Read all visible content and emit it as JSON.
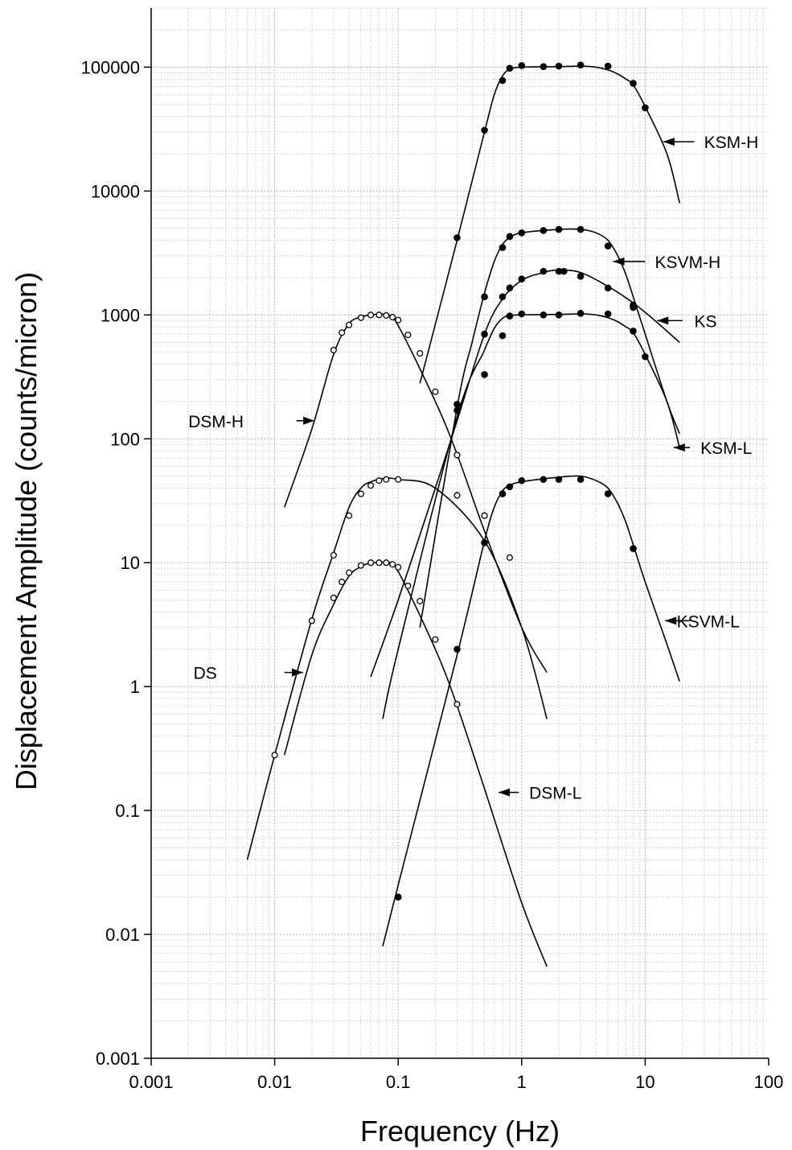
{
  "chart_data": {
    "type": "line",
    "title": "",
    "xlabel": "Frequency (Hz)",
    "ylabel": "Displacement Amplitude (counts/micron)",
    "xscale": "log",
    "yscale": "log",
    "xlim": [
      0.001,
      100
    ],
    "ylim": [
      0.001,
      300000
    ],
    "grid": "minor log gridlines on both axes",
    "x_ticks": [
      {
        "value": 0.001,
        "label": "0.001"
      },
      {
        "value": 0.01,
        "label": "0.01"
      },
      {
        "value": 0.1,
        "label": "0.1"
      },
      {
        "value": 1,
        "label": "1"
      },
      {
        "value": 10,
        "label": "10"
      },
      {
        "value": 100,
        "label": "100"
      }
    ],
    "y_ticks": [
      {
        "value": 0.001,
        "label": "0.001"
      },
      {
        "value": 0.01,
        "label": "0.01"
      },
      {
        "value": 0.1,
        "label": "0.1"
      },
      {
        "value": 1,
        "label": "1"
      },
      {
        "value": 10,
        "label": "10"
      },
      {
        "value": 100,
        "label": "100"
      },
      {
        "value": 1000,
        "label": "1000"
      },
      {
        "value": 10000,
        "label": "10000"
      },
      {
        "value": 100000,
        "label": "100000"
      }
    ],
    "series": [
      {
        "name": "KSM-H",
        "marker": "filled",
        "curve": [
          [
            0.15,
            280
          ],
          [
            0.3,
            4000
          ],
          [
            0.5,
            30000
          ],
          [
            0.6,
            60000
          ],
          [
            0.7,
            85000
          ],
          [
            0.8,
            96000
          ],
          [
            1,
            100000
          ],
          [
            2,
            101000
          ],
          [
            3,
            102000
          ],
          [
            4,
            100000
          ],
          [
            5,
            95000
          ],
          [
            6,
            88000
          ],
          [
            7,
            80000
          ],
          [
            8,
            72000
          ],
          [
            10,
            48000
          ],
          [
            15,
            20000
          ],
          [
            19,
            8000
          ]
        ],
        "points": [
          [
            0.3,
            4200
          ],
          [
            0.5,
            31000
          ],
          [
            0.7,
            78000
          ],
          [
            0.8,
            98000
          ],
          [
            1,
            103000
          ],
          [
            1.5,
            101000
          ],
          [
            2,
            102000
          ],
          [
            3,
            104000
          ],
          [
            5,
            102000
          ],
          [
            8,
            74000
          ],
          [
            10,
            47000
          ]
        ]
      },
      {
        "name": "KSVM-H",
        "marker": "filled",
        "curve": [
          [
            0.15,
            3
          ],
          [
            0.3,
            180
          ],
          [
            0.4,
            620
          ],
          [
            0.5,
            1500
          ],
          [
            0.6,
            2700
          ],
          [
            0.7,
            3700
          ],
          [
            0.8,
            4200
          ],
          [
            1,
            4600
          ],
          [
            2,
            4900
          ],
          [
            3,
            4900
          ],
          [
            4,
            4600
          ],
          [
            5,
            4000
          ],
          [
            6,
            3000
          ],
          [
            7,
            2100
          ],
          [
            8,
            1400
          ],
          [
            10,
            700
          ],
          [
            15,
            200
          ],
          [
            19,
            110
          ]
        ],
        "points": [
          [
            0.3,
            190
          ],
          [
            0.5,
            1400
          ],
          [
            0.7,
            3500
          ],
          [
            0.8,
            4300
          ],
          [
            1,
            4600
          ],
          [
            1.5,
            4800
          ],
          [
            2,
            4900
          ],
          [
            3,
            4900
          ],
          [
            5,
            3600
          ],
          [
            8,
            1200
          ]
        ]
      },
      {
        "name": "KS",
        "marker": "filled",
        "curve": [
          [
            0.06,
            1.2
          ],
          [
            0.1,
            5
          ],
          [
            0.2,
            40
          ],
          [
            0.3,
            140
          ],
          [
            0.5,
            700
          ],
          [
            0.7,
            1350
          ],
          [
            1,
            1900
          ],
          [
            1.5,
            2200
          ],
          [
            2,
            2300
          ],
          [
            3,
            2200
          ],
          [
            5,
            1700
          ],
          [
            8,
            1250
          ],
          [
            12,
            900
          ],
          [
            19,
            600
          ]
        ],
        "points": [
          [
            0.5,
            700
          ],
          [
            0.7,
            1400
          ],
          [
            0.8,
            1650
          ],
          [
            1,
            1950
          ],
          [
            1.5,
            2250
          ],
          [
            2,
            2250
          ],
          [
            2.2,
            2250
          ],
          [
            3,
            2050
          ],
          [
            5,
            1650
          ],
          [
            8,
            1150
          ]
        ]
      },
      {
        "name": "KSM-L",
        "marker": "filled",
        "curve": [
          [
            0.075,
            0.55
          ],
          [
            0.1,
            2
          ],
          [
            0.3,
            150
          ],
          [
            0.5,
            520
          ],
          [
            0.6,
            780
          ],
          [
            0.7,
            940
          ],
          [
            0.8,
            990
          ],
          [
            1,
            1000
          ],
          [
            2,
            1010
          ],
          [
            3,
            1020
          ],
          [
            4,
            1000
          ],
          [
            5,
            950
          ],
          [
            6,
            880
          ],
          [
            7,
            800
          ],
          [
            8,
            720
          ],
          [
            10,
            480
          ],
          [
            15,
            200
          ],
          [
            19,
            85
          ]
        ],
        "points": [
          [
            0.3,
            170
          ],
          [
            0.5,
            330
          ],
          [
            0.7,
            680
          ],
          [
            0.8,
            980
          ],
          [
            1,
            1020
          ],
          [
            1.5,
            1000
          ],
          [
            2,
            1000
          ],
          [
            3,
            1030
          ],
          [
            5,
            1020
          ],
          [
            8,
            740
          ],
          [
            10,
            460
          ]
        ]
      },
      {
        "name": "KSVM-L",
        "marker": "filled",
        "curve": [
          [
            0.075,
            0.008
          ],
          [
            0.1,
            0.025
          ],
          [
            0.3,
            1.8
          ],
          [
            0.5,
            15
          ],
          [
            0.6,
            28
          ],
          [
            0.7,
            38
          ],
          [
            0.8,
            42
          ],
          [
            1,
            45
          ],
          [
            2,
            49
          ],
          [
            3,
            50
          ],
          [
            4,
            46
          ],
          [
            5,
            40
          ],
          [
            6,
            30
          ],
          [
            7,
            21
          ],
          [
            8,
            14
          ],
          [
            10,
            7
          ],
          [
            15,
            2.2
          ],
          [
            19,
            1.1
          ]
        ],
        "points": [
          [
            0.1,
            0.02
          ],
          [
            0.3,
            2
          ],
          [
            0.5,
            14.5
          ],
          [
            0.7,
            36
          ],
          [
            0.8,
            41
          ],
          [
            1,
            46
          ],
          [
            1.5,
            47
          ],
          [
            2,
            47
          ],
          [
            3,
            47
          ],
          [
            5,
            36
          ],
          [
            8,
            13
          ]
        ]
      },
      {
        "name": "DSM-H",
        "marker": "open",
        "curve": [
          [
            0.012,
            28
          ],
          [
            0.02,
            120
          ],
          [
            0.03,
            480
          ],
          [
            0.04,
            850
          ],
          [
            0.05,
            960
          ],
          [
            0.06,
            1000
          ],
          [
            0.08,
            1000
          ],
          [
            0.1,
            820
          ],
          [
            0.2,
            200
          ],
          [
            0.3,
            75
          ],
          [
            0.5,
            18
          ],
          [
            1,
            3
          ],
          [
            1.6,
            1.3
          ]
        ],
        "points": [
          [
            0.03,
            520
          ],
          [
            0.035,
            720
          ],
          [
            0.04,
            830
          ],
          [
            0.05,
            950
          ],
          [
            0.06,
            1000
          ],
          [
            0.07,
            1000
          ],
          [
            0.08,
            990
          ],
          [
            0.09,
            960
          ],
          [
            0.1,
            910
          ],
          [
            0.12,
            690
          ],
          [
            0.15,
            490
          ],
          [
            0.2,
            240
          ],
          [
            0.3,
            74
          ],
          [
            0.5,
            24
          ],
          [
            0.8,
            11
          ]
        ]
      },
      {
        "name": "DS",
        "marker": "open",
        "curve": [
          [
            0.006,
            0.04
          ],
          [
            0.01,
            0.28
          ],
          [
            0.02,
            3.5
          ],
          [
            0.03,
            12
          ],
          [
            0.04,
            28
          ],
          [
            0.05,
            40
          ],
          [
            0.06,
            45
          ],
          [
            0.08,
            48
          ],
          [
            0.1,
            47
          ],
          [
            0.2,
            40
          ],
          [
            0.5,
            15
          ],
          [
            1,
            3
          ],
          [
            1.6,
            0.55
          ]
        ],
        "points": [
          [
            0.01,
            0.28
          ],
          [
            0.02,
            3.4
          ],
          [
            0.03,
            11.5
          ],
          [
            0.04,
            24
          ],
          [
            0.05,
            36
          ],
          [
            0.06,
            42
          ],
          [
            0.07,
            46
          ],
          [
            0.08,
            47
          ],
          [
            0.1,
            47
          ],
          [
            0.3,
            35
          ],
          [
            0.5,
            24
          ]
        ]
      },
      {
        "name": "DSM-L",
        "marker": "open",
        "curve": [
          [
            0.012,
            0.28
          ],
          [
            0.02,
            1.8
          ],
          [
            0.03,
            4.6
          ],
          [
            0.04,
            7.8
          ],
          [
            0.05,
            9.3
          ],
          [
            0.06,
            9.9
          ],
          [
            0.08,
            10
          ],
          [
            0.1,
            8.5
          ],
          [
            0.2,
            2
          ],
          [
            0.3,
            0.7
          ],
          [
            0.5,
            0.15
          ],
          [
            1,
            0.018
          ],
          [
            1.6,
            0.0055
          ]
        ],
        "points": [
          [
            0.03,
            5.2
          ],
          [
            0.035,
            7
          ],
          [
            0.04,
            8.3
          ],
          [
            0.05,
            9.5
          ],
          [
            0.06,
            10
          ],
          [
            0.07,
            10
          ],
          [
            0.08,
            10
          ],
          [
            0.09,
            9.7
          ],
          [
            0.1,
            9.2
          ],
          [
            0.12,
            6.5
          ],
          [
            0.15,
            4.9
          ],
          [
            0.2,
            2.4
          ],
          [
            0.3,
            0.72
          ]
        ]
      }
    ],
    "annotations": [
      {
        "text": "KSM-H",
        "x": 25,
        "y": 25000,
        "arrow_to": [
          14,
          25000
        ],
        "text_x": 30
      },
      {
        "text": "KSVM-H",
        "x": 10,
        "y": 2700,
        "arrow_to": [
          5.5,
          2700
        ],
        "text_x": 12
      },
      {
        "text": "KS",
        "x": 20,
        "y": 900,
        "arrow_to": [
          12.5,
          900
        ],
        "text_x": 25
      },
      {
        "text": "KSM-L",
        "x": 23,
        "y": 85,
        "arrow_to": [
          17,
          85
        ],
        "text_x": 28
      },
      {
        "text": "KSVM-L",
        "x": 23,
        "y": 3.4,
        "arrow_to": [
          14.5,
          3.4
        ],
        "text_x": 18
      },
      {
        "text": "DSM-H",
        "x": 0.015,
        "y": 140,
        "arrow_to": [
          0.021,
          140
        ],
        "text_x": 0.002
      },
      {
        "text": "DS",
        "x": 0.012,
        "y": 1.3,
        "arrow_to": [
          0.017,
          1.3
        ],
        "text_x": 0.0022
      },
      {
        "text": "DSM-L",
        "x": 0.95,
        "y": 0.14,
        "arrow_to": [
          0.65,
          0.14
        ],
        "text_x": 1.15
      }
    ]
  }
}
